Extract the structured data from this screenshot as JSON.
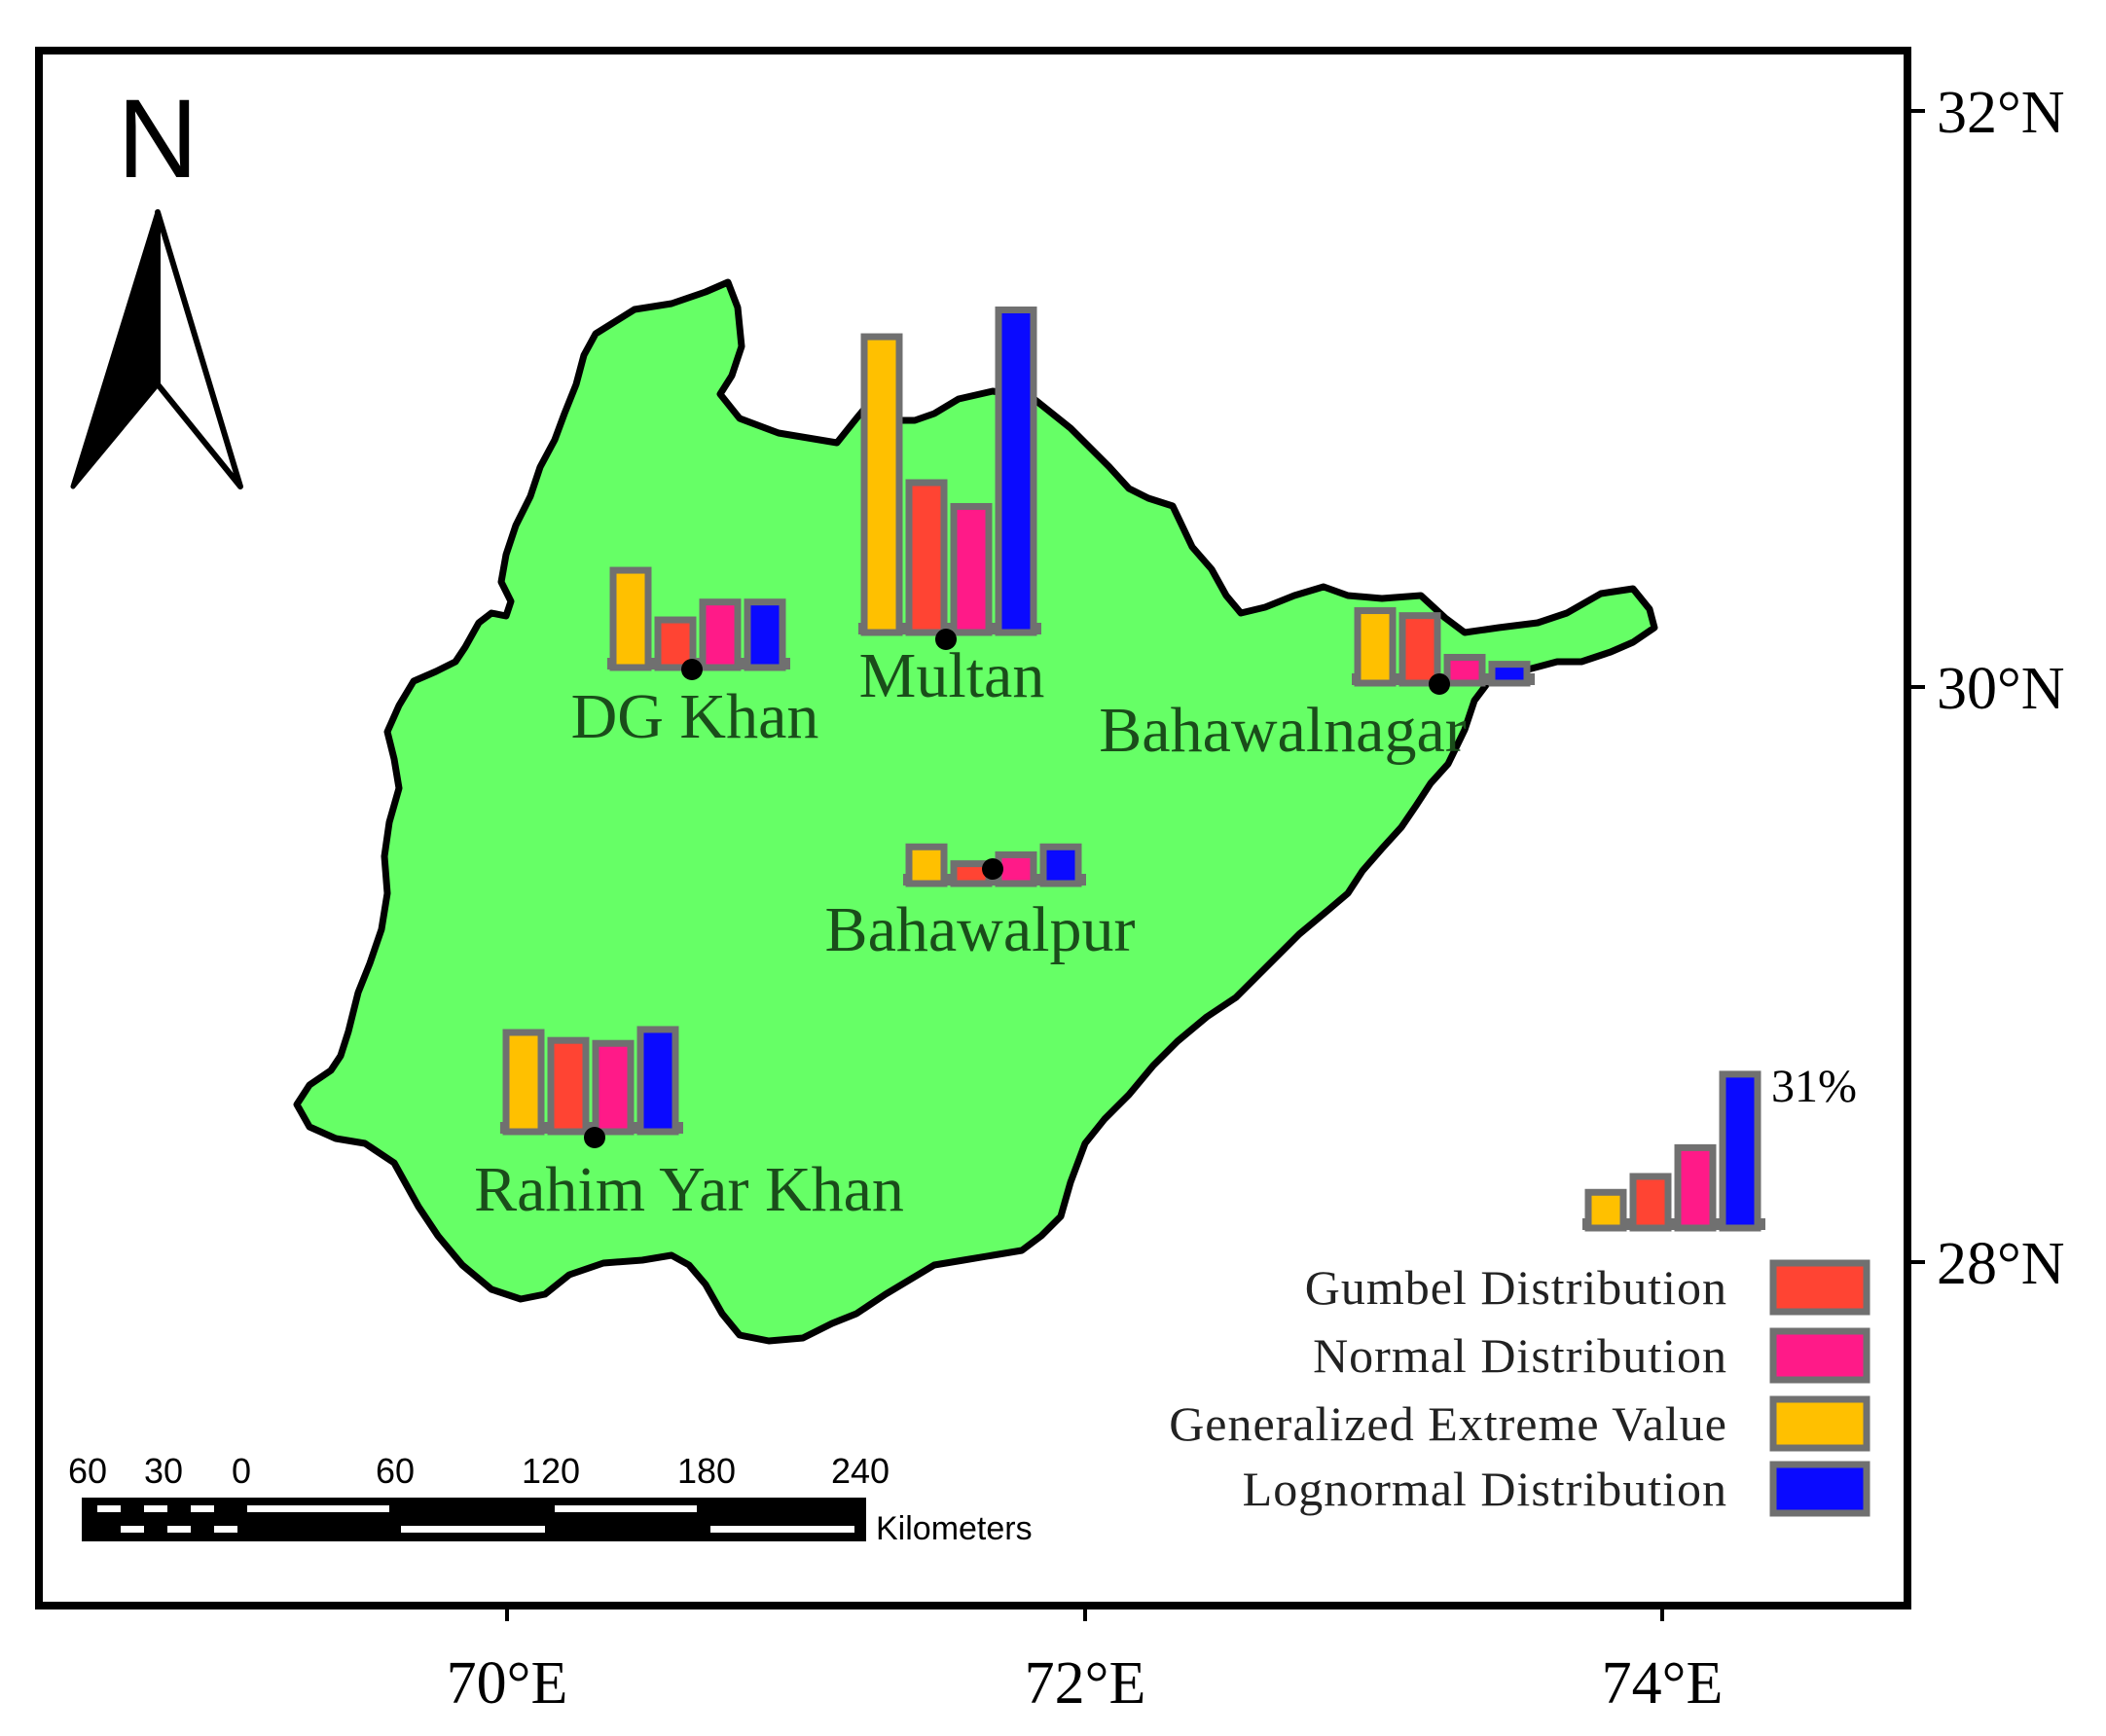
{
  "map": {
    "north_arrow_label": "N",
    "latitude_labels": [
      "32°N",
      "30°N",
      "28°N"
    ],
    "longitude_labels": [
      "70°E",
      "72°E",
      "74°E"
    ]
  },
  "cities": [
    {
      "name": "DG Khan",
      "values": {
        "gev": 0.098,
        "gumbel": 0.048,
        "normal": 0.066,
        "lognormal": 0.066
      }
    },
    {
      "name": "Multan",
      "values": {
        "gev": 0.298,
        "gumbel": 0.151,
        "normal": 0.127,
        "lognormal": 0.325
      }
    },
    {
      "name": "Bahawalnagar",
      "values": {
        "gev": 0.073,
        "gumbel": 0.068,
        "normal": 0.026,
        "lognormal": 0.019
      }
    },
    {
      "name": "Bahawalpur",
      "values": {
        "gev": 0.037,
        "gumbel": 0.02,
        "normal": 0.029,
        "lognormal": 0.037
      }
    },
    {
      "name": "Rahim Yar Khan",
      "values": {
        "gev": 0.1,
        "gumbel": 0.092,
        "normal": 0.089,
        "lognormal": 0.103
      }
    }
  ],
  "reference_bars": {
    "label": "31%",
    "values": {
      "gev": 0.036,
      "gumbel": 0.052,
      "normal": 0.081,
      "lognormal": 0.155
    }
  },
  "legend": {
    "items": [
      {
        "key": "gumbel",
        "label": "Gumbel Distribution"
      },
      {
        "key": "normal",
        "label": "Normal Distribution"
      },
      {
        "key": "gev",
        "label": "Generalized Extreme Value"
      },
      {
        "key": "lognormal",
        "label": "Lognormal Distribution"
      }
    ]
  },
  "scale_bar": {
    "tick_labels": [
      "60",
      "30",
      "0",
      "60",
      "120",
      "180",
      "240"
    ],
    "unit_label": "Kilometers"
  },
  "colors": {
    "region_fill": "#66ff66",
    "gev": "#ffc000",
    "gumbel": "#ff4433",
    "normal": "#ff1a88",
    "lognormal": "#0a0aff",
    "bar_border": "#707070",
    "label_text": "#1a4d1a"
  }
}
